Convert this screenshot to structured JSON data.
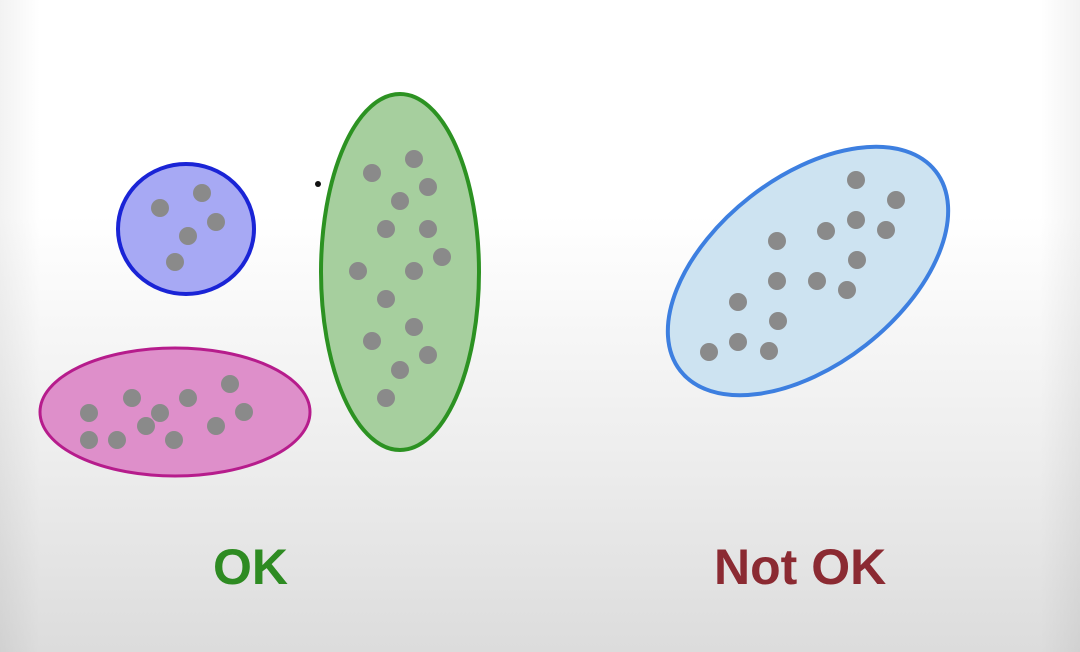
{
  "labels": {
    "ok": "OK",
    "not_ok": "Not OK"
  },
  "colors": {
    "ok_text": "#2e8b22",
    "not_ok_text": "#8b2a32",
    "point": "#8a8a8a",
    "blue_cluster_fill": "#a7a9f4",
    "blue_cluster_stroke": "#1a24d6",
    "magenta_cluster_fill": "#de8fca",
    "magenta_cluster_stroke": "#b61c8c",
    "green_cluster_fill": "#a6cf9e",
    "green_cluster_stroke": "#2c9222",
    "lightblue_cluster_fill": "#cde3f1",
    "lightblue_cluster_stroke": "#3d7fe0"
  }
}
